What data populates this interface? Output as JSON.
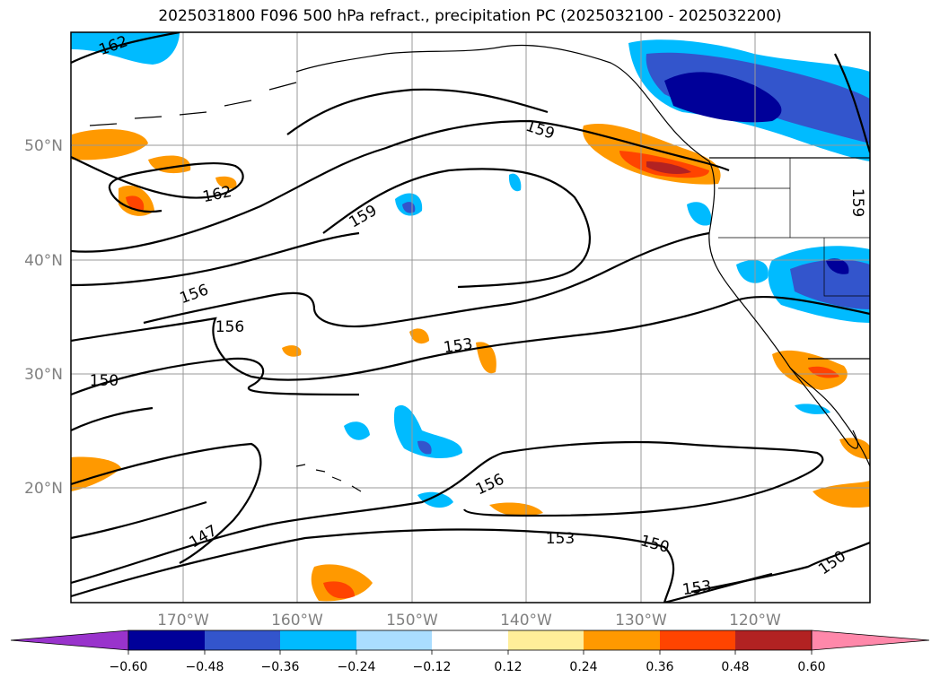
{
  "title": "2025031800 F096 500 hPa refract., precipitation PC (2025032100 - 2025032200)",
  "lat_labels": [
    "50°N",
    "40°N",
    "30°N",
    "20°N"
  ],
  "lon_labels": [
    "170°W",
    "160°W",
    "150°W",
    "140°W",
    "130°W",
    "120°W"
  ],
  "contour_labels": [
    "162",
    "159",
    "162",
    "159",
    "156",
    "156",
    "150",
    "153",
    "147",
    "156",
    "153",
    "150",
    "153",
    "150",
    "159"
  ],
  "colorbar": {
    "tick_labels": [
      "−0.60",
      "−0.48",
      "−0.36",
      "−0.24",
      "−0.12",
      "0.12",
      "0.24",
      "0.36",
      "0.48",
      "0.60"
    ],
    "colors": [
      "#9933cc",
      "#000099",
      "#3355cc",
      "#00bbff",
      "#aaddff",
      "#ffffff",
      "#ffee99",
      "#ff9900",
      "#ff4400",
      "#b22222",
      "#ff88aa"
    ]
  },
  "colors": {
    "contour": "#000000",
    "coastline": "#000000",
    "grid": "#999999"
  }
}
